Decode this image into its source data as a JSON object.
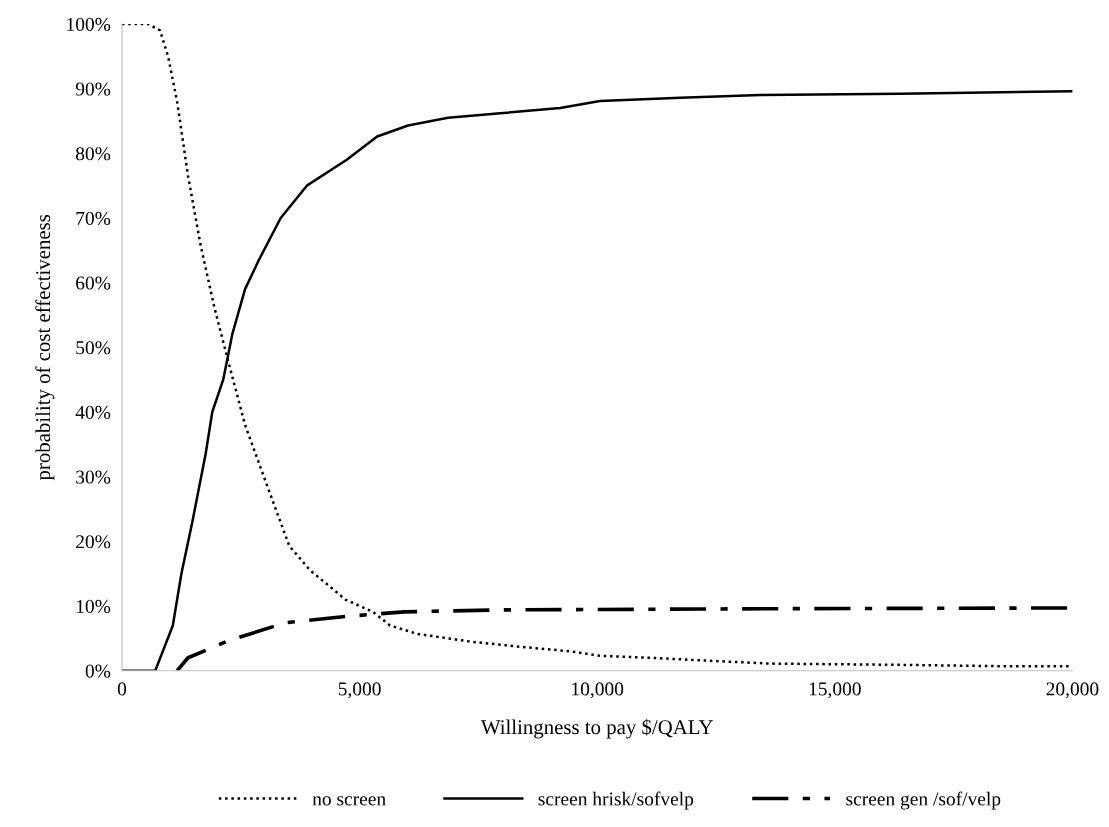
{
  "chart_data": {
    "type": "line",
    "xlabel": "Willingness to pay $/QALY",
    "ylabel": "probability of cost effectiveness",
    "xlim": [
      0,
      20000
    ],
    "xticks": [
      0,
      {
        "value": 5000,
        "label": "5,000"
      },
      {
        "value": 10000,
        "label": "10,000"
      },
      {
        "value": 15000,
        "label": "15,000"
      },
      {
        "value": 20000,
        "label": "20,000"
      }
    ],
    "ylim": [
      0,
      100
    ],
    "yticks": [
      {
        "value": 0,
        "label": "0%"
      },
      {
        "value": 10,
        "label": "10%"
      },
      {
        "value": 20,
        "label": "20%"
      },
      {
        "value": 30,
        "label": "30%"
      },
      {
        "value": 40,
        "label": "40%"
      },
      {
        "value": 50,
        "label": "50%"
      },
      {
        "value": 60,
        "label": "60%"
      },
      {
        "value": 70,
        "label": "70%"
      },
      {
        "value": 80,
        "label": "80%"
      },
      {
        "value": 90,
        "label": "90%"
      },
      {
        "value": 100,
        "label": "100%"
      }
    ],
    "grid": false,
    "legend": "bottom",
    "marker": "none",
    "series": [
      {
        "name": "no screen",
        "color": "#000000",
        "line_style": "dotted",
        "x": [
          0,
          550,
          800,
          970,
          1160,
          1390,
          1660,
          1950,
          2230,
          2590,
          3050,
          3520,
          3960,
          4360,
          4700,
          5280,
          5640,
          6210,
          7330,
          8380,
          9430,
          10060,
          11120,
          12170,
          13640,
          16380,
          18480,
          20000
        ],
        "values": [
          100,
          100,
          99,
          95,
          88,
          76.5,
          65.6,
          56,
          48,
          38,
          28.7,
          19.3,
          15.5,
          13.1,
          11,
          9.1,
          7,
          5.7,
          4.5,
          3.7,
          3,
          2.3,
          2,
          1.6,
          1.1,
          0.9,
          0.7,
          0.7
        ]
      },
      {
        "name": "screen hrisk/sofvelp",
        "color": "#000000",
        "line_style": "solid",
        "x": [
          0,
          700,
          1070,
          1250,
          1480,
          1760,
          1900,
          2130,
          2320,
          2590,
          2880,
          3340,
          3890,
          4730,
          5370,
          6020,
          6860,
          7960,
          9220,
          10060,
          11750,
          13430,
          16380,
          20000
        ],
        "values": [
          0,
          0,
          7,
          15,
          23,
          33.5,
          40,
          45,
          52,
          59,
          63.5,
          70,
          75,
          79,
          82.6,
          84.3,
          85.5,
          86.2,
          87,
          88.1,
          88.6,
          89,
          89.2,
          89.6
        ]
      },
      {
        "name": "screen gen /sof/velp",
        "color": "#000000",
        "line_style": "dashdot",
        "x": [
          1160,
          1390,
          2230,
          3430,
          4730,
          5940,
          7960,
          14270,
          20000
        ],
        "values": [
          0,
          2,
          4.6,
          7.4,
          8.4,
          9.1,
          9.4,
          9.6,
          9.7
        ]
      }
    ]
  }
}
